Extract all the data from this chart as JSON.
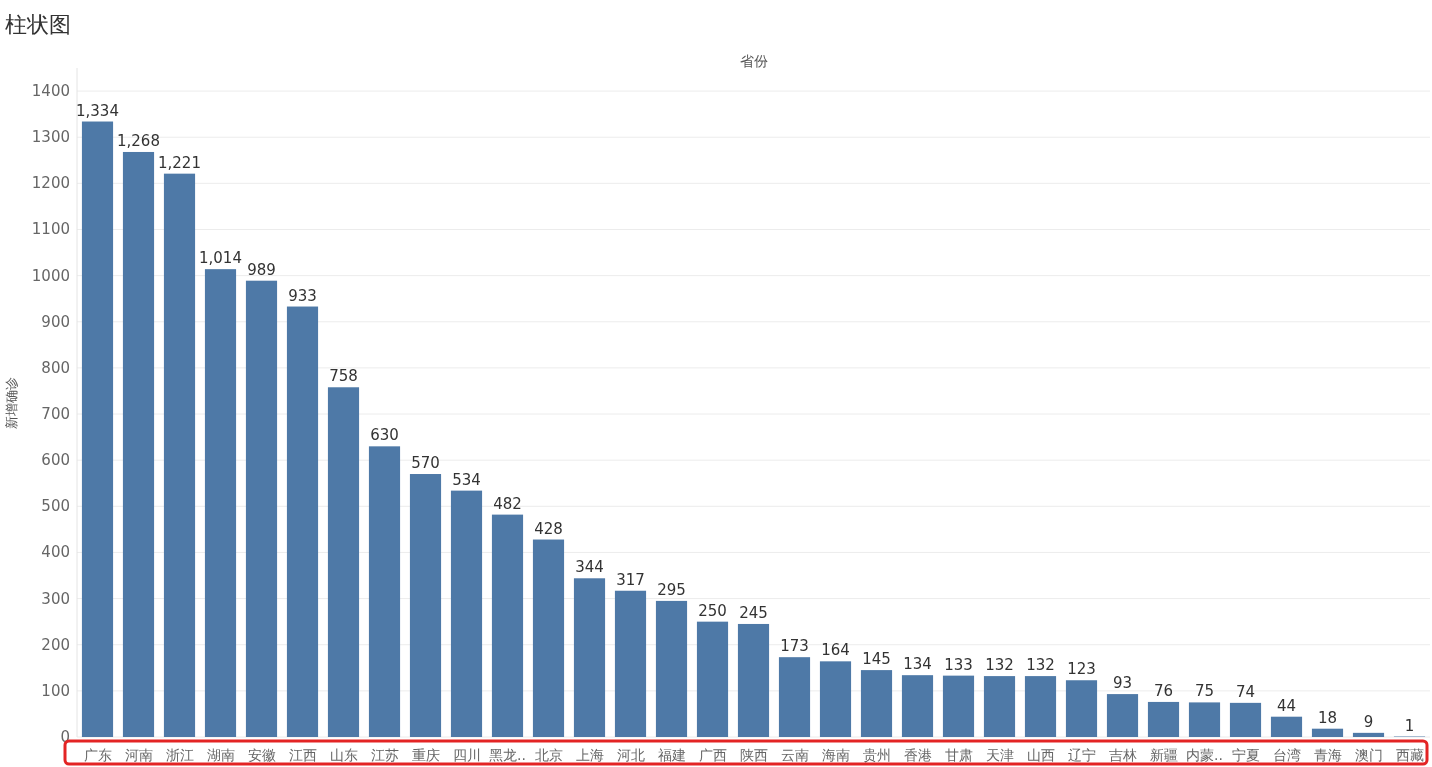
{
  "chart_data": {
    "type": "bar",
    "title": "柱状图",
    "xlabel": "省份",
    "ylabel": "新增确诊",
    "categories": [
      "广东",
      "河南",
      "浙江",
      "湖南",
      "安徽",
      "江西",
      "山东",
      "江苏",
      "重庆",
      "四川",
      "黑龙..",
      "北京",
      "上海",
      "河北",
      "福建",
      "广西",
      "陕西",
      "云南",
      "海南",
      "贵州",
      "香港",
      "甘肃",
      "天津",
      "山西",
      "辽宁",
      "吉林",
      "新疆",
      "内蒙..",
      "宁夏",
      "台湾",
      "青海",
      "澳门",
      "西藏"
    ],
    "values": [
      1334,
      1268,
      1221,
      1014,
      989,
      933,
      758,
      630,
      570,
      534,
      482,
      428,
      344,
      317,
      295,
      250,
      245,
      173,
      164,
      145,
      134,
      133,
      132,
      132,
      123,
      93,
      76,
      75,
      74,
      44,
      18,
      9,
      1
    ],
    "color": "#4e79a7",
    "ylim": [
      0,
      1450
    ],
    "yticks": [
      0,
      100,
      200,
      300,
      400,
      500,
      600,
      700,
      800,
      900,
      1000,
      1100,
      1200,
      1300,
      1400
    ],
    "grid": "y",
    "value_labels": [
      "1,334",
      "1,268",
      "1,221",
      "1,014",
      "989",
      "933",
      "758",
      "630",
      "570",
      "534",
      "482",
      "428",
      "344",
      "317",
      "295",
      "250",
      "245",
      "173",
      "164",
      "145",
      "134",
      "133",
      "132",
      "132",
      "123",
      "93",
      "76",
      "75",
      "74",
      "44",
      "18",
      "9",
      "1"
    ]
  }
}
